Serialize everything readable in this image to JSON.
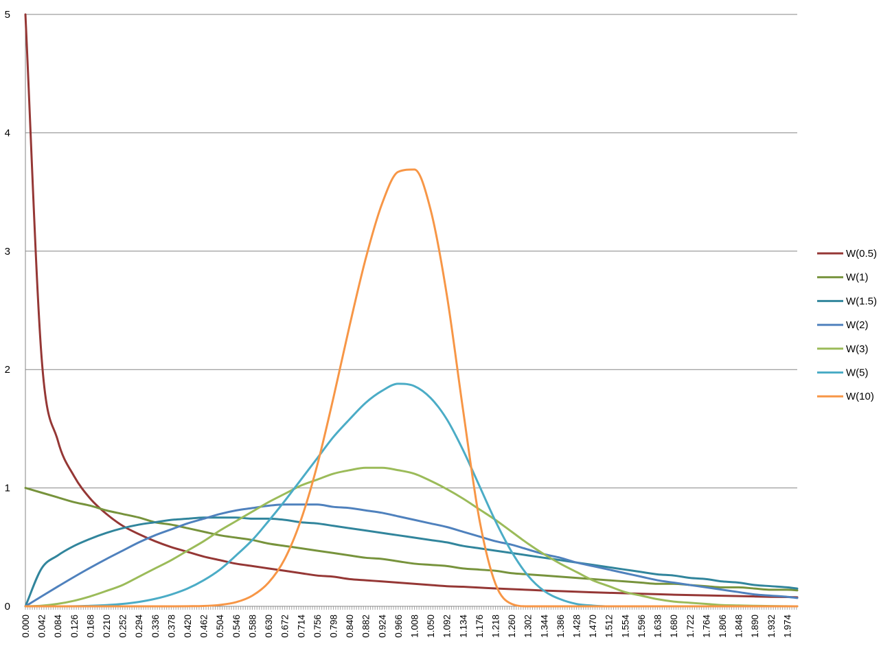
{
  "chart_data": {
    "type": "line",
    "title": "",
    "xlabel": "",
    "ylabel": "",
    "xlim": [
      0,
      2.0
    ],
    "ylim": [
      0,
      5
    ],
    "yticks": [
      "0",
      "1",
      "2",
      "3",
      "4",
      "5"
    ],
    "x_tick_step": 0.042,
    "xtick_labels": [
      "0.000",
      "0.042",
      "0.084",
      "0.126",
      "0.168",
      "0.210",
      "0.252",
      "0.294",
      "0.336",
      "0.378",
      "0.420",
      "0.462",
      "0.504",
      "0.546",
      "0.588",
      "0.630",
      "0.672",
      "0.714",
      "0.756",
      "0.798",
      "0.840",
      "0.882",
      "0.924",
      "0.966",
      "1.008",
      "1.050",
      "1.092",
      "1.134",
      "1.176",
      "1.218",
      "1.260",
      "1.302",
      "1.344",
      "1.386",
      "1.428",
      "1.470",
      "1.512",
      "1.554",
      "1.596",
      "1.638",
      "1.680",
      "1.722",
      "1.764",
      "1.806",
      "1.848",
      "1.890",
      "1.932",
      "1.974"
    ],
    "grid": "horizontal",
    "legend_position": "right",
    "x": [
      0.0,
      0.042,
      0.084,
      0.126,
      0.168,
      0.21,
      0.252,
      0.294,
      0.336,
      0.378,
      0.42,
      0.462,
      0.504,
      0.546,
      0.588,
      0.63,
      0.672,
      0.714,
      0.756,
      0.798,
      0.84,
      0.882,
      0.924,
      0.966,
      1.008,
      1.05,
      1.092,
      1.134,
      1.176,
      1.218,
      1.26,
      1.302,
      1.344,
      1.386,
      1.428,
      1.47,
      1.512,
      1.554,
      1.596,
      1.638,
      1.68,
      1.722,
      1.764,
      1.806,
      1.848,
      1.89,
      1.932,
      1.974,
      2.0
    ],
    "series": [
      {
        "name": "W(0.5)",
        "color": "#953735",
        "values": [
          5.0,
          2.1,
          1.4,
          1.1,
          0.91,
          0.78,
          0.68,
          0.61,
          0.55,
          0.5,
          0.46,
          0.42,
          0.39,
          0.36,
          0.34,
          0.32,
          0.3,
          0.28,
          0.26,
          0.25,
          0.23,
          0.22,
          0.21,
          0.2,
          0.19,
          0.18,
          0.17,
          0.165,
          0.158,
          0.151,
          0.145,
          0.139,
          0.133,
          0.128,
          0.123,
          0.118,
          0.114,
          0.11,
          0.106,
          0.102,
          0.098,
          0.095,
          0.092,
          0.089,
          0.086,
          0.083,
          0.08,
          0.078,
          0.076
        ]
      },
      {
        "name": "W(1)",
        "color": "#77933C",
        "values": [
          1.0,
          0.96,
          0.92,
          0.88,
          0.85,
          0.81,
          0.78,
          0.75,
          0.71,
          0.69,
          0.66,
          0.63,
          0.6,
          0.58,
          0.56,
          0.53,
          0.51,
          0.49,
          0.47,
          0.45,
          0.43,
          0.41,
          0.4,
          0.38,
          0.36,
          0.35,
          0.34,
          0.32,
          0.31,
          0.3,
          0.28,
          0.27,
          0.26,
          0.25,
          0.24,
          0.23,
          0.22,
          0.21,
          0.2,
          0.19,
          0.19,
          0.18,
          0.17,
          0.16,
          0.16,
          0.15,
          0.14,
          0.14,
          0.135
        ]
      },
      {
        "name": "W(1.5)",
        "color": "#31859C",
        "values": [
          0.0,
          0.32,
          0.43,
          0.51,
          0.57,
          0.62,
          0.66,
          0.69,
          0.71,
          0.73,
          0.74,
          0.75,
          0.75,
          0.75,
          0.74,
          0.74,
          0.73,
          0.71,
          0.7,
          0.68,
          0.66,
          0.64,
          0.62,
          0.6,
          0.58,
          0.56,
          0.54,
          0.51,
          0.49,
          0.47,
          0.45,
          0.43,
          0.41,
          0.39,
          0.37,
          0.35,
          0.33,
          0.31,
          0.29,
          0.27,
          0.26,
          0.24,
          0.23,
          0.21,
          0.2,
          0.18,
          0.17,
          0.16,
          0.15
        ]
      },
      {
        "name": "W(2)",
        "color": "#4F81BD",
        "values": [
          0.0,
          0.084,
          0.167,
          0.248,
          0.326,
          0.4,
          0.47,
          0.54,
          0.6,
          0.65,
          0.7,
          0.74,
          0.78,
          0.81,
          0.83,
          0.85,
          0.86,
          0.86,
          0.86,
          0.84,
          0.83,
          0.81,
          0.79,
          0.76,
          0.73,
          0.7,
          0.67,
          0.63,
          0.59,
          0.55,
          0.52,
          0.48,
          0.44,
          0.41,
          0.37,
          0.34,
          0.31,
          0.28,
          0.25,
          0.22,
          0.2,
          0.18,
          0.16,
          0.14,
          0.12,
          0.1,
          0.09,
          0.08,
          0.07
        ]
      },
      {
        "name": "W(3)",
        "color": "#9BBB59",
        "values": [
          0.0,
          0.005,
          0.021,
          0.047,
          0.084,
          0.13,
          0.18,
          0.25,
          0.32,
          0.39,
          0.47,
          0.55,
          0.64,
          0.72,
          0.8,
          0.88,
          0.95,
          1.02,
          1.07,
          1.12,
          1.15,
          1.17,
          1.17,
          1.15,
          1.12,
          1.06,
          0.99,
          0.91,
          0.82,
          0.73,
          0.63,
          0.53,
          0.44,
          0.36,
          0.29,
          0.22,
          0.17,
          0.12,
          0.09,
          0.06,
          0.04,
          0.03,
          0.02,
          0.01,
          0.007,
          0.004,
          0.002,
          0.001,
          0.0
        ]
      },
      {
        "name": "W(5)",
        "color": "#4BACC6",
        "values": [
          0.0,
          0.0,
          0.0,
          0.001,
          0.004,
          0.01,
          0.02,
          0.037,
          0.063,
          0.1,
          0.15,
          0.22,
          0.31,
          0.43,
          0.56,
          0.72,
          0.89,
          1.07,
          1.25,
          1.43,
          1.58,
          1.72,
          1.82,
          1.88,
          1.86,
          1.76,
          1.58,
          1.32,
          1.02,
          0.72,
          0.46,
          0.26,
          0.13,
          0.06,
          0.02,
          0.006,
          0.0,
          0.0,
          0.0,
          0.0,
          0.0,
          0.0,
          0.0,
          0.0,
          0.0,
          0.0,
          0.0,
          0.0,
          0.0
        ]
      },
      {
        "name": "W(10)",
        "color": "#F79646",
        "values": [
          0.0,
          0.0,
          0.0,
          0.0,
          0.0,
          0.0,
          0.0,
          0.0,
          0.0,
          0.0,
          0.001,
          0.003,
          0.012,
          0.035,
          0.09,
          0.2,
          0.4,
          0.73,
          1.19,
          1.76,
          2.37,
          2.94,
          3.4,
          3.67,
          3.69,
          3.35,
          2.63,
          1.66,
          0.74,
          0.19,
          0.02,
          0.0,
          0.0,
          0.0,
          0.0,
          0.0,
          0.0,
          0.0,
          0.0,
          0.0,
          0.0,
          0.0,
          0.0,
          0.0,
          0.0,
          0.0,
          0.0,
          0.0,
          0.0
        ]
      }
    ]
  }
}
